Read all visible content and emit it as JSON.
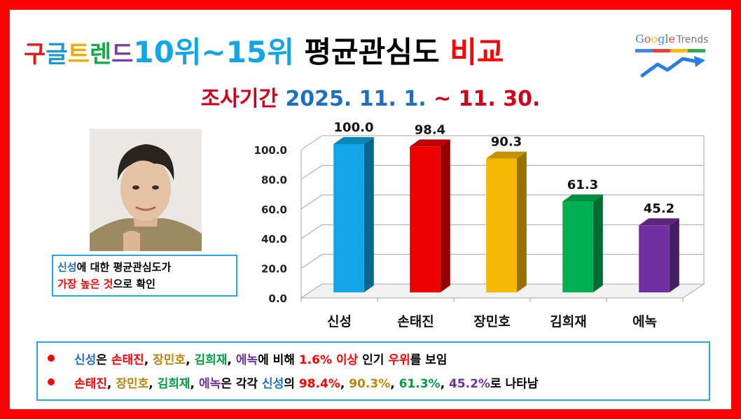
{
  "title": [
    {
      "text": "구",
      "color": "#e8161b",
      "size": "small"
    },
    {
      "text": "글",
      "color": "#2196d3",
      "size": "small"
    },
    {
      "text": "트",
      "color": "#f2a900",
      "size": "small"
    },
    {
      "text": "렌",
      "color": "#1aa84a",
      "size": "small"
    },
    {
      "text": "드",
      "color": "#7b3fa8",
      "size": "small"
    },
    {
      "text": "10위~15위",
      "color": "#12a6e6",
      "size": "big"
    },
    {
      "text": " 평균관심도 ",
      "color": "#000000",
      "size": "big"
    },
    {
      "text": "비교",
      "color": "#ff0000",
      "size": "big"
    }
  ],
  "subtitle": {
    "prefix": "조사기간 ",
    "prefix_color": "#d0001a",
    "dates": "2025. 11. 1. ",
    "dates_color": "#1f6fc0",
    "tilde": "~ 11. 30.",
    "tilde_color": "#d0001a"
  },
  "logo": {
    "google": "Google",
    "trends": "Trends"
  },
  "caption": [
    [
      {
        "text": "신성",
        "color": "#1f6fc0"
      },
      {
        "text": "에 대한 평균관심도가",
        "color": "#000000"
      }
    ],
    [
      {
        "text": "가장 높은 것",
        "color": "#ff0000"
      },
      {
        "text": "으로 확인",
        "color": "#000000"
      }
    ]
  ],
  "chart_data": {
    "type": "bar",
    "categories": [
      "신성",
      "손태진",
      "장민호",
      "김희재",
      "에녹"
    ],
    "values": [
      100.0,
      98.4,
      90.3,
      61.3,
      45.2
    ],
    "data_labels": [
      "100.0",
      "98.4",
      "90.3",
      "61.3",
      "45.2"
    ],
    "colors": [
      "#12a6e6",
      "#ee0000",
      "#f5b800",
      "#00b050",
      "#7030a0"
    ],
    "yticks": [
      "0.0",
      "20.0",
      "40.0",
      "60.0",
      "80.0",
      "100.0"
    ],
    "ylim": [
      0,
      100
    ],
    "grid": true,
    "style": "3d"
  },
  "summary": [
    [
      {
        "text": "신성",
        "color": "#1f6fc0"
      },
      {
        "text": "은 ",
        "color": "#000000"
      },
      {
        "text": "손태진",
        "color": "#ff0000"
      },
      {
        "text": ", ",
        "color": "#000000"
      },
      {
        "text": "장민호",
        "color": "#b8860b"
      },
      {
        "text": ", ",
        "color": "#000000"
      },
      {
        "text": "김희재",
        "color": "#00a040"
      },
      {
        "text": ", ",
        "color": "#000000"
      },
      {
        "text": "에녹",
        "color": "#7030a0"
      },
      {
        "text": "에 비해 ",
        "color": "#000000"
      },
      {
        "text": "1.6% 이상",
        "color": "#ff0000"
      },
      {
        "text": " 인기 ",
        "color": "#000000"
      },
      {
        "text": "우위",
        "color": "#ff0000"
      },
      {
        "text": "를 보임",
        "color": "#000000"
      }
    ],
    [
      {
        "text": "손태진",
        "color": "#ff0000"
      },
      {
        "text": ", ",
        "color": "#000000"
      },
      {
        "text": "장민호",
        "color": "#b8860b"
      },
      {
        "text": ", ",
        "color": "#000000"
      },
      {
        "text": "김희재",
        "color": "#00a040"
      },
      {
        "text": ", ",
        "color": "#000000"
      },
      {
        "text": "에녹",
        "color": "#7030a0"
      },
      {
        "text": "은 각각 ",
        "color": "#000000"
      },
      {
        "text": "신성",
        "color": "#1f6fc0"
      },
      {
        "text": "의 ",
        "color": "#000000"
      },
      {
        "text": "98.4%",
        "color": "#ff0000"
      },
      {
        "text": ", ",
        "color": "#000000"
      },
      {
        "text": "90.3%",
        "color": "#b8860b"
      },
      {
        "text": ", ",
        "color": "#000000"
      },
      {
        "text": "61.3%",
        "color": "#00a040"
      },
      {
        "text": ", ",
        "color": "#000000"
      },
      {
        "text": "45.2%",
        "color": "#7030a0"
      },
      {
        "text": "로 나타남",
        "color": "#000000"
      }
    ]
  ]
}
